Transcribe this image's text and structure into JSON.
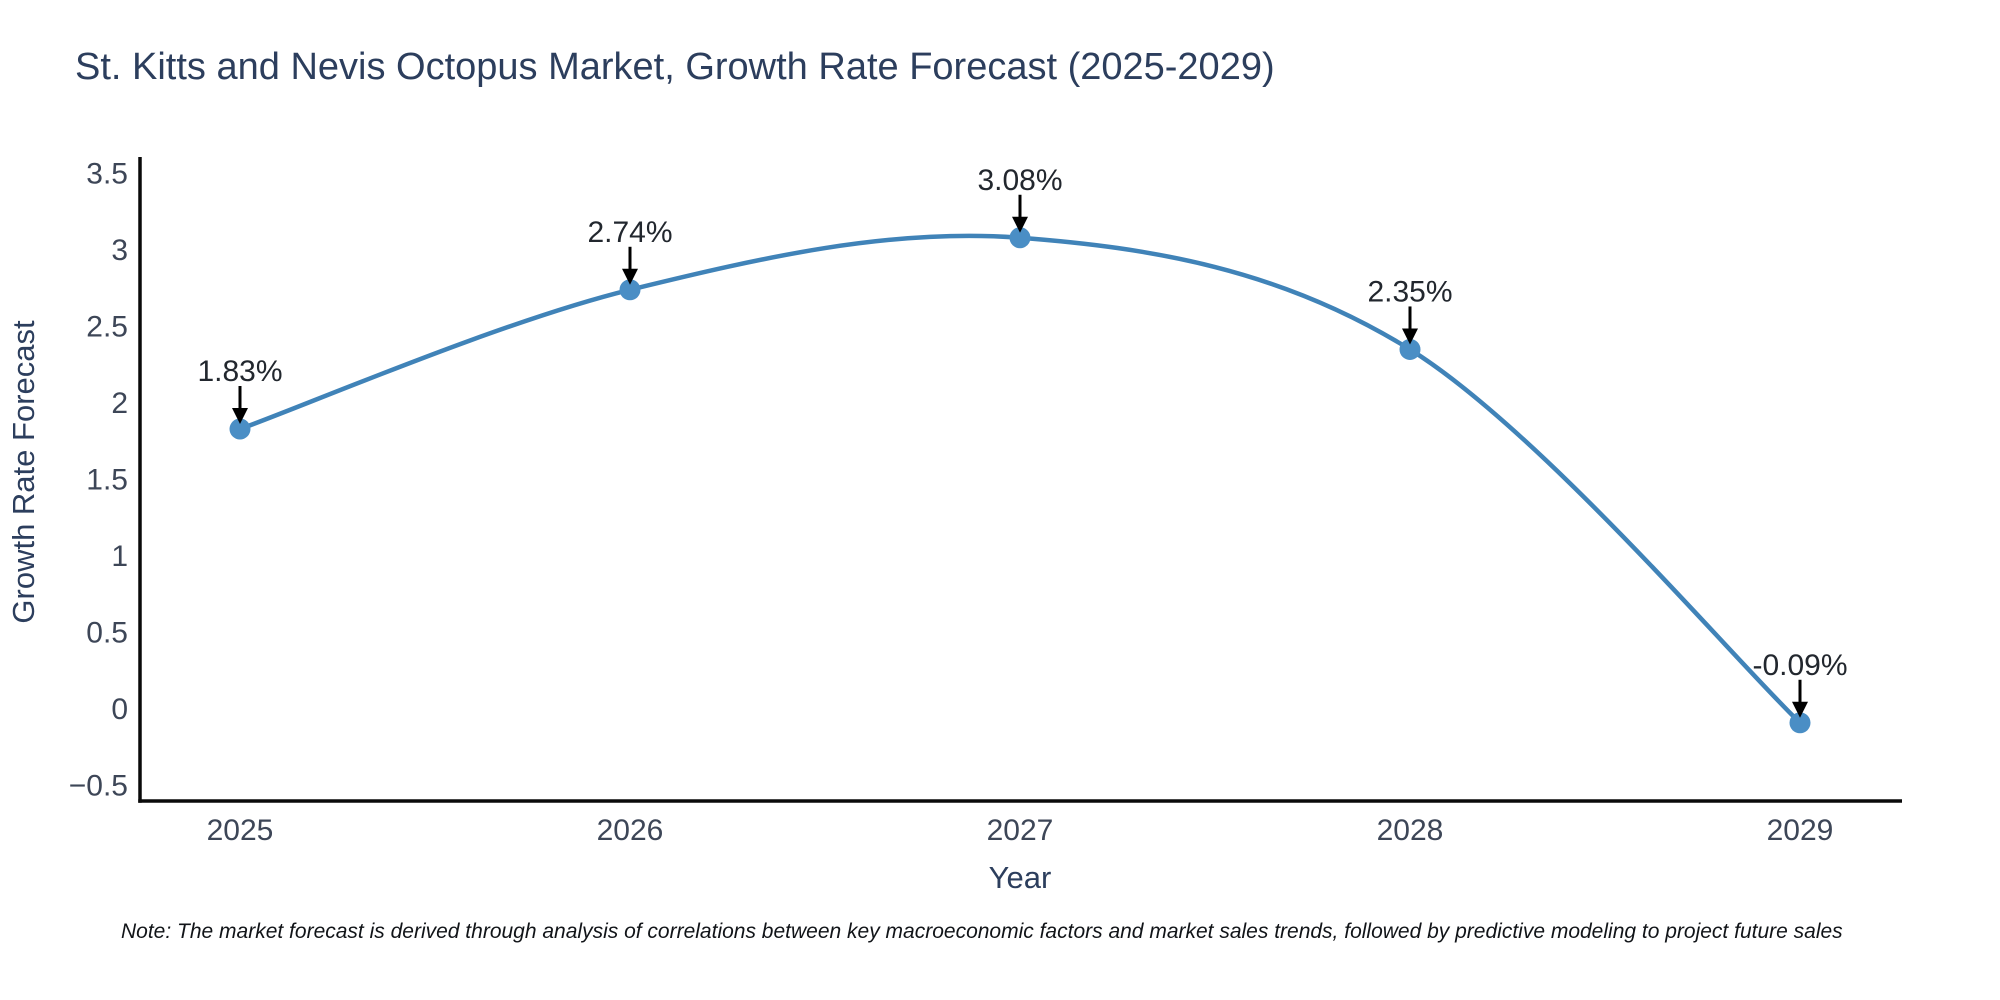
{
  "page": {
    "note": "Note: The market forecast is derived through analysis of correlations between key macroeconomic factors and market sales trends, followed by predictive modeling to project future sales"
  },
  "chart_data": {
    "type": "line",
    "title": "St. Kitts and Nevis Octopus Market, Growth Rate Forecast (2025-2029)",
    "xlabel": "Year",
    "ylabel": "Growth Rate Forecast",
    "categories": [
      "2025",
      "2026",
      "2027",
      "2028",
      "2029"
    ],
    "series": [
      {
        "name": "Growth Rate Forecast",
        "values": [
          1.83,
          2.74,
          3.08,
          2.35,
          -0.09
        ]
      }
    ],
    "point_labels": [
      "1.83%",
      "2.74%",
      "3.08%",
      "2.35%",
      "-0.09%"
    ],
    "ylim": [
      -0.5,
      3.5
    ],
    "yticks": [
      -0.5,
      0,
      0.5,
      1,
      1.5,
      2,
      2.5,
      3,
      3.5
    ],
    "ytick_labels": [
      "−0.5",
      "0",
      "0.5",
      "1",
      "1.5",
      "2",
      "2.5",
      "3",
      "3.5"
    ],
    "line_shape": "spline",
    "grid": false,
    "legend_position": "none",
    "colors": {
      "line": "#4083b8",
      "marker": "#4a8ec5",
      "axis": "#0a0a0a",
      "title_text": "#2c3e5d",
      "tick_text": "#3d4657",
      "annotation_text": "#22272e",
      "arrow": "#000000",
      "background": "#ffffff"
    }
  }
}
